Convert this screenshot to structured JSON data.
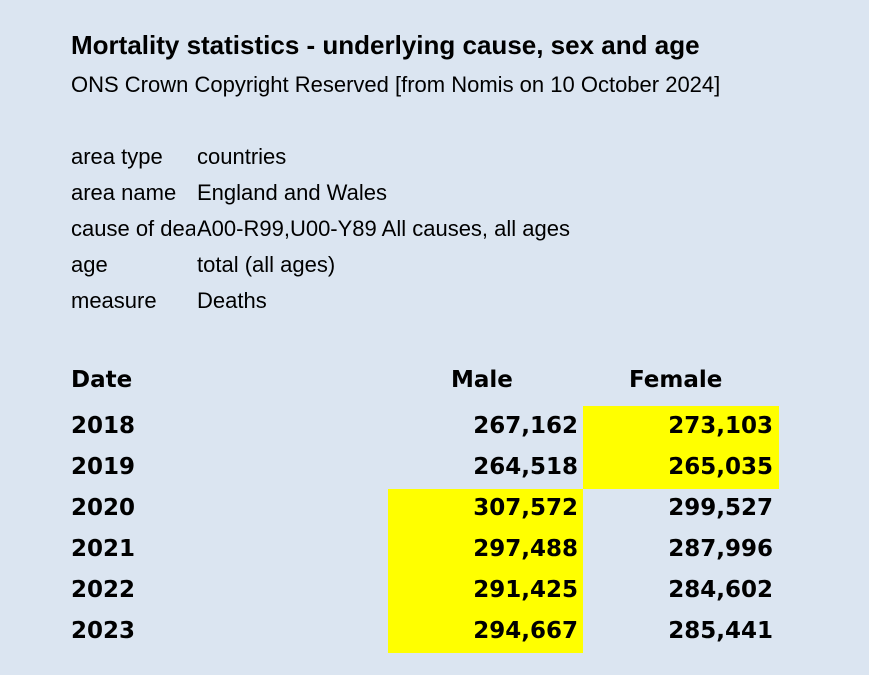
{
  "title": "Mortality statistics - underlying cause, sex and age",
  "subtitle": "ONS Crown Copyright Reserved [from Nomis on 10 October 2024]",
  "meta": [
    {
      "key": "area type",
      "value": "countries"
    },
    {
      "key": "area name",
      "value": "England and Wales"
    },
    {
      "key": "cause of death",
      "value": "A00-R99,U00-Y89 All causes, all ages"
    },
    {
      "key": "age",
      "value": "total (all ages)"
    },
    {
      "key": "measure",
      "value": "Deaths"
    }
  ],
  "table": {
    "headers": {
      "date": "Date",
      "male": "Male",
      "female": "Female"
    },
    "rows": [
      {
        "date": "2018",
        "male": "267,162",
        "female": "273,103"
      },
      {
        "date": "2019",
        "male": "264,518",
        "female": "265,035"
      },
      {
        "date": "2020",
        "male": "307,572",
        "female": "299,527"
      },
      {
        "date": "2021",
        "male": "297,488",
        "female": "287,996"
      },
      {
        "date": "2022",
        "male": "291,425",
        "female": "284,602"
      },
      {
        "date": "2023",
        "male": "294,667",
        "female": "285,441"
      }
    ]
  },
  "highlight_color": "#ffff00",
  "background_color": "#dbe5f1"
}
